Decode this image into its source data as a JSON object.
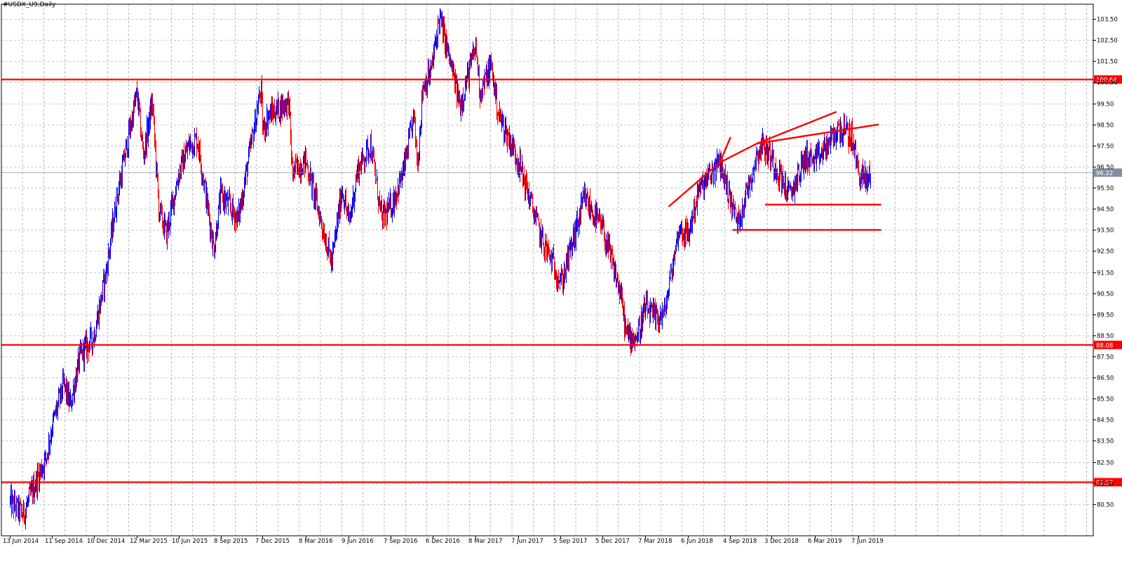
{
  "window": {
    "title": "#USDX_U9,Daily"
  },
  "chart_data": {
    "type": "candlestick",
    "symbol": "#USDX_U9",
    "timeframe": "Daily",
    "ylim": [
      79.0,
      104.2
    ],
    "y_ticks": [
      "103.50",
      "102.50",
      "101.50",
      "100.50",
      "99.50",
      "98.50",
      "97.50",
      "96.50",
      "95.50",
      "94.50",
      "93.50",
      "92.50",
      "91.50",
      "90.50",
      "89.50",
      "88.50",
      "87.50",
      "86.50",
      "85.50",
      "84.50",
      "83.50",
      "82.50",
      "81.50",
      "80.50"
    ],
    "x_ticks": [
      "13 Jun 2014",
      "11 Sep 2014",
      "10 Dec 2014",
      "12 Mar 2015",
      "10 Jun 2015",
      "8 Sep 2015",
      "7 Dec 2015",
      "8 Mar 2016",
      "9 Jun 2016",
      "7 Sep 2016",
      "6 Dec 2016",
      "8 Mar 2017",
      "7 Jun 2017",
      "5 Sep 2017",
      "5 Dec 2017",
      "7 Mar 2018",
      "6 Jun 2018",
      "4 Sep 2018",
      "3 Dec 2018",
      "6 Mar 2019",
      "7 Jun 2019"
    ],
    "grid": true,
    "up_color": "#0000ff",
    "down_color": "#ff0000",
    "price_path": [
      {
        "date": "13 Jun 2014",
        "price": 80.6
      },
      {
        "date": "11 Jul 2014",
        "price": 80.0
      },
      {
        "date": "8 Aug 2014",
        "price": 81.6
      },
      {
        "date": "29 Aug 2014",
        "price": 82.7
      },
      {
        "date": "11 Sep 2014",
        "price": 84.2
      },
      {
        "date": "6 Oct 2014",
        "price": 86.2
      },
      {
        "date": "20 Oct 2014",
        "price": 85.2
      },
      {
        "date": "10 Nov 2014",
        "price": 87.5
      },
      {
        "date": "10 Dec 2014",
        "price": 88.5
      },
      {
        "date": "5 Jan 2015",
        "price": 91.5
      },
      {
        "date": "26 Jan 2015",
        "price": 94.8
      },
      {
        "date": "12 Mar 2015",
        "price": 100.0
      },
      {
        "date": "26 Mar 2015",
        "price": 97.0
      },
      {
        "date": "14 Apr 2015",
        "price": 99.6
      },
      {
        "date": "28 Apr 2015",
        "price": 94.5
      },
      {
        "date": "14 May 2015",
        "price": 93.3
      },
      {
        "date": "10 Jun 2015",
        "price": 96.2
      },
      {
        "date": "1 Jul 2015",
        "price": 97.5
      },
      {
        "date": "20 Jul 2015",
        "price": 97.8
      },
      {
        "date": "24 Aug 2015",
        "price": 92.6
      },
      {
        "date": "8 Sep 2015",
        "price": 95.2
      },
      {
        "date": "15 Oct 2015",
        "price": 94.0
      },
      {
        "date": "3 Dec 2015",
        "price": 100.2
      },
      {
        "date": "7 Dec 2015",
        "price": 98.2
      },
      {
        "date": "18 Dec 2015",
        "price": 98.9
      },
      {
        "date": "1 Feb 2016",
        "price": 99.6
      },
      {
        "date": "8 Feb 2016",
        "price": 96.2
      },
      {
        "date": "8 Mar 2016",
        "price": 96.8
      },
      {
        "date": "3 May 2016",
        "price": 91.9
      },
      {
        "date": "25 May 2016",
        "price": 95.5
      },
      {
        "date": "9 Jun 2016",
        "price": 93.8
      },
      {
        "date": "27 Jun 2016",
        "price": 96.3
      },
      {
        "date": "25 Jul 2016",
        "price": 97.6
      },
      {
        "date": "18 Aug 2016",
        "price": 94.0
      },
      {
        "date": "7 Sep 2016",
        "price": 94.6
      },
      {
        "date": "3 Oct 2016",
        "price": 96.2
      },
      {
        "date": "26 Oct 2016",
        "price": 98.9
      },
      {
        "date": "3 Nov 2016",
        "price": 96.6
      },
      {
        "date": "14 Nov 2016",
        "price": 100.3
      },
      {
        "date": "2 Dec 2016",
        "price": 101.0
      },
      {
        "date": "20 Dec 2016",
        "price": 103.6
      },
      {
        "date": "6 Jan 2017",
        "price": 102.0
      },
      {
        "date": "2 Feb 2017",
        "price": 99.4
      },
      {
        "date": "8 Mar 2017",
        "price": 102.2
      },
      {
        "date": "17 Mar 2017",
        "price": 100.0
      },
      {
        "date": "10 Apr 2017",
        "price": 101.3
      },
      {
        "date": "25 Apr 2017",
        "price": 99.0
      },
      {
        "date": "7 Jun 2017",
        "price": 96.8
      },
      {
        "date": "28 Jul 2017",
        "price": 93.0
      },
      {
        "date": "8 Sep 2017",
        "price": 91.0
      },
      {
        "date": "27 Oct 2017",
        "price": 95.0
      },
      {
        "date": "5 Dec 2017",
        "price": 93.5
      },
      {
        "date": "12 Jan 2018",
        "price": 90.5
      },
      {
        "date": "25 Jan 2018",
        "price": 88.5
      },
      {
        "date": "16 Feb 2018",
        "price": 88.4
      },
      {
        "date": "7 Mar 2018",
        "price": 89.8
      },
      {
        "date": "26 Mar 2018",
        "price": 89.3
      },
      {
        "date": "16 Apr 2018",
        "price": 89.5
      },
      {
        "date": "18 May 2018",
        "price": 93.6
      },
      {
        "date": "6 Jun 2018",
        "price": 93.2
      },
      {
        "date": "28 Jun 2018",
        "price": 95.3
      },
      {
        "date": "14 Aug 2018",
        "price": 96.7
      },
      {
        "date": "4 Sep 2018",
        "price": 95.0
      },
      {
        "date": "21 Sep 2018",
        "price": 93.8
      },
      {
        "date": "31 Oct 2018",
        "price": 97.0
      },
      {
        "date": "12 Nov 2018",
        "price": 97.6
      },
      {
        "date": "3 Dec 2018",
        "price": 96.9
      },
      {
        "date": "10 Jan 2019",
        "price": 95.1
      },
      {
        "date": "14 Feb 2019",
        "price": 97.0
      },
      {
        "date": "6 Mar 2019",
        "price": 96.7
      },
      {
        "date": "26 Apr 2019",
        "price": 98.3
      },
      {
        "date": "23 May 2019",
        "price": 97.9
      },
      {
        "date": "7 Jun 2019",
        "price": 96.2
      },
      {
        "date": "25 Jun 2019",
        "price": 95.8
      },
      {
        "date": "3 Jul 2019",
        "price": 96.2
      }
    ],
    "horizontal_levels": [
      {
        "price": 100.64,
        "label": "100.64"
      },
      {
        "price": 88.08,
        "label": "88.08"
      },
      {
        "price": 81.57,
        "label": "81.57"
      }
    ],
    "current_price": {
      "price": 96.22,
      "label": "96.22"
    },
    "trend_lines": [
      {
        "from": {
          "date": "26 Apr 2018",
          "price": 94.6
        },
        "to": {
          "date": "14 Aug 2018",
          "price": 96.7
        }
      },
      {
        "from": {
          "date": "14 Aug 2018",
          "price": 96.7
        },
        "to": {
          "date": "6 Sep 2018",
          "price": 97.9
        }
      },
      {
        "from": {
          "date": "14 Aug 2018",
          "price": 96.7
        },
        "to": {
          "date": "2 Nov 2018",
          "price": 97.6
        }
      },
      {
        "from": {
          "date": "2 Nov 2018",
          "price": 97.6
        },
        "to": {
          "date": "21 Apr 2019",
          "price": 99.1
        }
      },
      {
        "from": {
          "date": "2 Nov 2018",
          "price": 97.6
        },
        "to": {
          "date": "21 Jul 2019",
          "price": 98.5
        }
      },
      {
        "from": {
          "date": "19 Nov 2018",
          "price": 94.7
        },
        "to": {
          "date": "26 Jul 2019",
          "price": 94.7
        }
      },
      {
        "from": {
          "date": "10 Sep 2018",
          "price": 93.5
        },
        "to": {
          "date": "26 Jul 2019",
          "price": 93.5
        }
      }
    ]
  }
}
